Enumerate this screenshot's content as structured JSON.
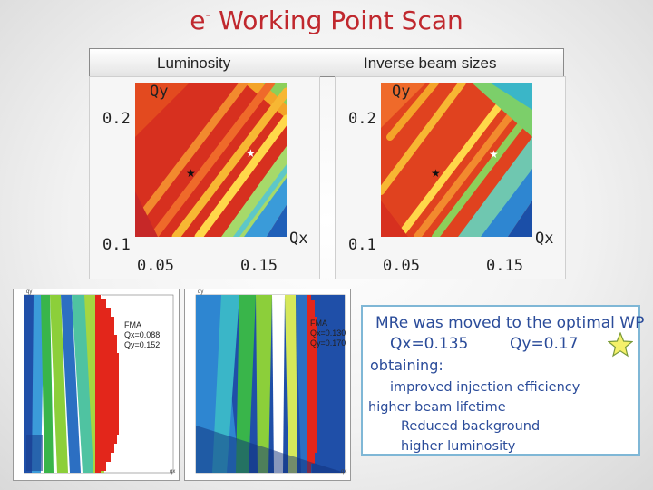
{
  "title": {
    "prefix": "e",
    "superscript": "-",
    "rest": " Working Point Scan"
  },
  "panels": {
    "luminosity": {
      "header": "Luminosity"
    },
    "inverse": {
      "header": "Inverse beam sizes"
    },
    "axis": {
      "qy": "Qy",
      "qx": "Qx",
      "y_top": "0.2",
      "y_bottom": "0.1",
      "x_left": "0.05",
      "x_right": "0.15"
    }
  },
  "fma": [
    {
      "label": "FMA",
      "qx": "Qx=0.088",
      "qy": "Qy=0.152"
    },
    {
      "label": "FMA",
      "qx": "Qx=0.130",
      "qy": "Qy=0.170"
    }
  ],
  "fma_axis": {
    "top": "qy",
    "right": "qx"
  },
  "notes": {
    "line1": "MRe was moved to the optimal WP",
    "qx": "Qx=0.135",
    "qy": "Qy=0.17",
    "obtaining": "obtaining:",
    "item1": "improved injection efficiency",
    "item2": "higher beam lifetime",
    "item3": "Reduced background",
    "item4": "higher luminosity"
  },
  "colors": {
    "title": "#c0282e",
    "notes_text": "#2b4c9a",
    "notes_border": "#7fb7d6",
    "star_fill": "#f5f06a"
  }
}
